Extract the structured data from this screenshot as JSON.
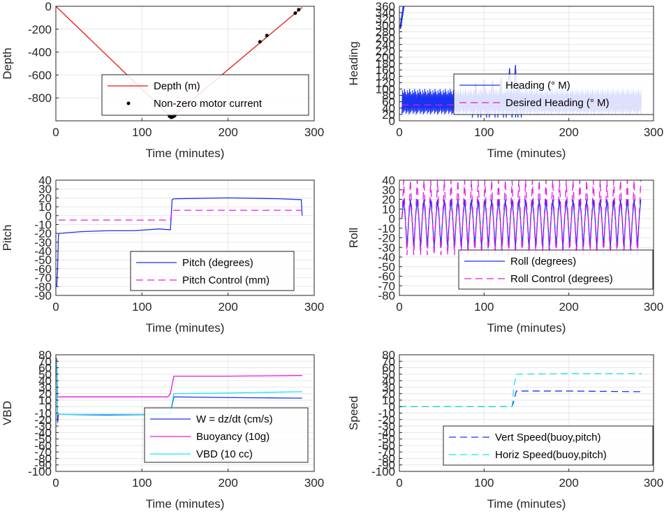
{
  "chart_data": [
    {
      "type": "line",
      "xlabel": "Time (minutes)",
      "ylabel": "Depth",
      "xlim": [
        0,
        300
      ],
      "ylim": [
        -1000,
        0
      ],
      "xticks": [
        "0",
        "100",
        "200",
        "300"
      ],
      "yticks": [
        "0",
        "-200",
        "-400",
        "-600",
        "-800"
      ],
      "grid": true,
      "legend_position": "inside-lower-center",
      "series": [
        {
          "name": "Depth (m)",
          "color": "#e6180e",
          "style": "solid",
          "x": [
            0,
            134,
            286
          ],
          "y": [
            0,
            -970,
            -10
          ]
        },
        {
          "name": "Non-zero motor current",
          "color": "#000000",
          "style": "dot",
          "x": [
            132,
            134,
            136,
            138,
            237,
            245,
            278,
            282
          ],
          "y": [
            -960,
            -970,
            -965,
            -955,
            -310,
            -255,
            -60,
            -30
          ]
        }
      ]
    },
    {
      "type": "line",
      "xlabel": "Time (minutes)",
      "ylabel": "Heading",
      "xlim": [
        0,
        300
      ],
      "ylim": [
        0,
        360
      ],
      "xticks": [
        "0",
        "100",
        "200",
        "300"
      ],
      "yticks": [
        "0",
        "20",
        "40",
        "60",
        "80",
        "100",
        "120",
        "140",
        "160",
        "180",
        "200",
        "220",
        "240",
        "260",
        "280",
        "300",
        "320",
        "340",
        "360"
      ],
      "grid": true,
      "legend_position": "inside-center-right",
      "series": [
        {
          "name": "Heading (° M)",
          "color": "#1a33f2",
          "style": "plus-line",
          "band_x": [
            3,
            286
          ],
          "band_low": 20,
          "band_high": 100,
          "spikes_x": [
            90,
            100,
            110,
            120,
            130,
            137,
            141
          ],
          "spikes_top": [
            120,
            130,
            125,
            135,
            165,
            175,
            120
          ],
          "start_x": [
            1,
            5
          ],
          "start_y": [
            290,
            360
          ]
        },
        {
          "name": "Desired Heading (° M)",
          "color": "#e619e6",
          "style": "dashed",
          "x": [
            3,
            286
          ],
          "y": [
            50,
            50
          ]
        }
      ]
    },
    {
      "type": "line",
      "xlabel": "Time (minutes)",
      "ylabel": "Pitch",
      "xlim": [
        0,
        300
      ],
      "ylim": [
        -90,
        40
      ],
      "xticks": [
        "0",
        "100",
        "200",
        "300"
      ],
      "yticks": [
        "40",
        "30",
        "20",
        "10",
        "0",
        "-10",
        "-20",
        "-30",
        "-40",
        "-50",
        "-60",
        "-70",
        "-80",
        "-90"
      ],
      "grid": true,
      "legend_position": "inside-lower-right",
      "series": [
        {
          "name": "Pitch (degrees)",
          "color": "#1a33f2",
          "style": "solid",
          "x": [
            1,
            2,
            3,
            4,
            5,
            30,
            60,
            90,
            120,
            133,
            134,
            135,
            137,
            200,
            260,
            285,
            286
          ],
          "y": [
            -80,
            -60,
            -22,
            -20,
            -20,
            -18,
            -17,
            -17,
            -15,
            -16,
            0,
            18,
            19,
            20,
            19,
            18,
            0
          ]
        },
        {
          "name": "Pitch Control (mm)",
          "color": "#e619e6",
          "style": "dashed",
          "x": [
            3,
            133,
            135,
            286
          ],
          "y": [
            -5,
            -5,
            6,
            6
          ]
        }
      ]
    },
    {
      "type": "line",
      "xlabel": "Time (minutes)",
      "ylabel": "Roll",
      "xlim": [
        0,
        300
      ],
      "ylim": [
        -80,
        40
      ],
      "xticks": [
        "0",
        "100",
        "200",
        "300"
      ],
      "yticks": [
        "40",
        "30",
        "20",
        "10",
        "0",
        "-10",
        "-20",
        "-30",
        "-40",
        "-50",
        "-60",
        "-70",
        "-80"
      ],
      "grid": true,
      "legend_position": "inside-lower-right",
      "series": [
        {
          "name": "Roll (degrees)",
          "color": "#1a33f2",
          "style": "solid",
          "osc_x": [
            3,
            286
          ],
          "osc_high": 20,
          "osc_low": -30,
          "osc_period": 8
        },
        {
          "name": "Roll Control (degrees)",
          "color": "#e619e6",
          "style": "dashed",
          "osc_x": [
            3,
            286
          ],
          "osc_high": 40,
          "osc_low": -38,
          "osc_period": 8
        }
      ]
    },
    {
      "type": "line",
      "xlabel": "Time (minutes)",
      "ylabel": "VBD",
      "xlim": [
        0,
        300
      ],
      "ylim": [
        -100,
        80
      ],
      "xticks": [
        "0",
        "100",
        "200",
        "300"
      ],
      "yticks": [
        "80",
        "70",
        "60",
        "50",
        "40",
        "30",
        "20",
        "10",
        "0",
        "-10",
        "-20",
        "-30",
        "-40",
        "-50",
        "-60",
        "-70",
        "-80",
        "-90",
        "-100"
      ],
      "grid": true,
      "legend_position": "inside-lower-right",
      "series": [
        {
          "name": "W = dz/dt (cm/s)",
          "color": "#1a33f2",
          "style": "solid",
          "x": [
            1,
            2,
            3,
            5,
            60,
            130,
            133,
            137,
            200,
            286
          ],
          "y": [
            60,
            -25,
            -12,
            -12,
            -13,
            -12,
            -10,
            15,
            14,
            13
          ]
        },
        {
          "name": "Buoyancy (10g)",
          "color": "#e619e6",
          "style": "solid",
          "x": [
            1,
            2,
            3,
            130,
            133,
            137,
            200,
            286
          ],
          "y": [
            75,
            15,
            15,
            15,
            20,
            47,
            47,
            48
          ]
        },
        {
          "name": "VBD (10 cc)",
          "color": "#19e6e6",
          "style": "solid",
          "x": [
            1,
            2,
            3,
            130,
            133,
            137,
            200,
            286
          ],
          "y": [
            70,
            -12,
            -12,
            -12,
            -9,
            20,
            21,
            23
          ]
        }
      ]
    },
    {
      "type": "line",
      "xlabel": "Time (minutes)",
      "ylabel": "Speed",
      "xlim": [
        0,
        300
      ],
      "ylim": [
        -100,
        80
      ],
      "xticks": [
        "0",
        "100",
        "200",
        "300"
      ],
      "yticks": [
        "80",
        "70",
        "60",
        "50",
        "40",
        "30",
        "20",
        "10",
        "0",
        "-10",
        "-20",
        "-30",
        "-40",
        "-50",
        "-60",
        "-70",
        "-80",
        "-90",
        "-100"
      ],
      "grid": true,
      "legend_position": "inside-lower-right",
      "series": [
        {
          "name": "Vert Speed(buoy,pitch)",
          "color": "#1a33f2",
          "style": "dashed",
          "x": [
            0,
            133,
            135,
            138,
            200,
            286
          ],
          "y": [
            0,
            0,
            8,
            24,
            24,
            23
          ]
        },
        {
          "name": "Horiz Speed(buoy,pitch)",
          "color": "#19e6e6",
          "style": "dashed",
          "x": [
            0,
            133,
            135,
            138,
            200,
            286
          ],
          "y": [
            0,
            0,
            30,
            50,
            51,
            51
          ]
        }
      ]
    }
  ]
}
